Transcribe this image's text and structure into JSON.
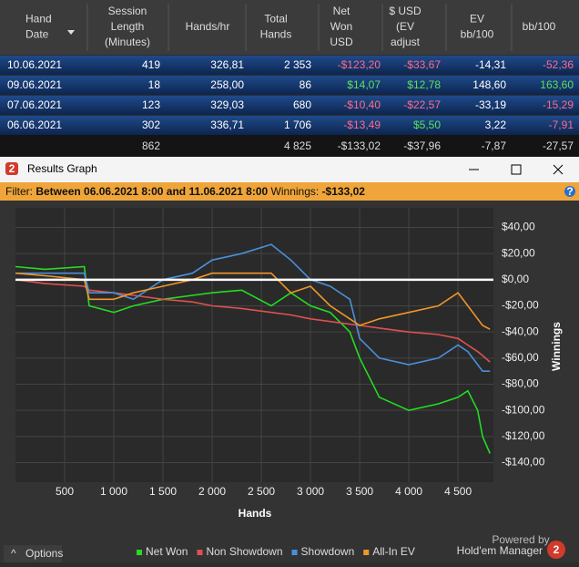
{
  "table": {
    "headers": [
      [
        "Hand",
        "Date"
      ],
      [
        "Session",
        "Length",
        "(Minutes)"
      ],
      [
        "Hands/hr"
      ],
      [
        "Total",
        "Hands"
      ],
      [
        "Net",
        "Won",
        "USD"
      ],
      [
        "$ USD",
        "(EV",
        "adjust"
      ],
      [
        "EV",
        "bb/100"
      ],
      [
        "bb/100"
      ]
    ],
    "rows": [
      [
        "10.06.2021",
        "419",
        "326,81",
        "2 353",
        "-$123,20",
        "-$33,67",
        "-14,31",
        "-52,36"
      ],
      [
        "09.06.2021",
        "18",
        "258,00",
        "86",
        "$14,07",
        "$12,78",
        "148,60",
        "163,60"
      ],
      [
        "07.06.2021",
        "123",
        "329,03",
        "680",
        "-$10,40",
        "-$22,57",
        "-33,19",
        "-15,29"
      ],
      [
        "06.06.2021",
        "302",
        "336,71",
        "1 706",
        "-$13,49",
        "$5,50",
        "3,22",
        "-7,91"
      ]
    ],
    "totals": [
      "",
      "862",
      "",
      "4 825",
      "-$133,02",
      "-$37,96",
      "-7,87",
      "-27,57"
    ]
  },
  "window": {
    "title": "Results Graph",
    "filter_label": "Filter:",
    "filter_text": "Between 06.06.2021 8:00 and 11.06.2021 8:00",
    "winnings_label": "Winnings:",
    "winnings_value": "-$133,02",
    "options": "Options",
    "powered_by": "Powered by",
    "brand": "Hold'em Manager"
  },
  "chart_data": {
    "type": "line",
    "x_label": "Hands",
    "y_label": "Winnings",
    "x": [
      0,
      300,
      700,
      750,
      1000,
      1200,
      1500,
      1800,
      2000,
      2300,
      2600,
      2800,
      3000,
      3200,
      3400,
      3500,
      3700,
      4000,
      4300,
      4500,
      4600,
      4700,
      4750,
      4825
    ],
    "series": [
      {
        "name": "Net Won",
        "color": "#22dd22",
        "values": [
          10,
          8,
          10,
          -20,
          -25,
          -20,
          -15,
          -12,
          -10,
          -8,
          -20,
          -10,
          -20,
          -25,
          -40,
          -60,
          -90,
          -100,
          -95,
          -90,
          -85,
          -100,
          -120,
          -133.02
        ]
      },
      {
        "name": "Non Showdown",
        "color": "#e05050",
        "values": [
          0,
          -3,
          -5,
          -8,
          -10,
          -12,
          -15,
          -17,
          -20,
          -22,
          -25,
          -27,
          -30,
          -32,
          -34,
          -35,
          -37,
          -40,
          -42,
          -45,
          -50,
          -55,
          -58,
          -63
        ]
      },
      {
        "name": "Showdown",
        "color": "#4a90d9",
        "values": [
          5,
          5,
          5,
          -10,
          -10,
          -15,
          0,
          5,
          15,
          20,
          27,
          15,
          0,
          -5,
          -15,
          -45,
          -60,
          -65,
          -60,
          -50,
          -55,
          -65,
          -70,
          -70
        ]
      },
      {
        "name": "All-In EV",
        "color": "#f0962a",
        "values": [
          5,
          3,
          0,
          -15,
          -15,
          -10,
          -5,
          0,
          5,
          5,
          5,
          -10,
          -5,
          -20,
          -30,
          -35,
          -30,
          -25,
          -20,
          -10,
          -20,
          -30,
          -35,
          -37.96
        ]
      }
    ],
    "xlim": [
      0,
      4860
    ],
    "ylim": [
      -155,
      55
    ],
    "xticks": [
      500,
      {
        "value": 1000,
        "label": "1 000"
      },
      {
        "value": 1500,
        "label": "1 500"
      },
      {
        "value": 2000,
        "label": "2 000"
      },
      {
        "value": 2500,
        "label": "2 500"
      },
      {
        "value": 3000,
        "label": "3 000"
      },
      {
        "value": 3500,
        "label": "3 500"
      },
      {
        "value": 4000,
        "label": "4 000"
      },
      {
        "value": 4500,
        "label": "4 500"
      }
    ],
    "yticks": [
      {
        "value": 40,
        "label": "$40,00"
      },
      {
        "value": 20,
        "label": "$20,00"
      },
      {
        "value": 0,
        "label": "$0,00"
      },
      {
        "value": -20,
        "label": "-$20,00"
      },
      {
        "value": -40,
        "label": "-$40,00"
      },
      {
        "value": -60,
        "label": "-$60,00"
      },
      {
        "value": -80,
        "label": "-$80,00"
      },
      {
        "value": -100,
        "label": "-$100,00"
      },
      {
        "value": -120,
        "label": "-$120,00"
      },
      {
        "value": -140,
        "label": "-$140,00"
      }
    ],
    "grid": true
  }
}
